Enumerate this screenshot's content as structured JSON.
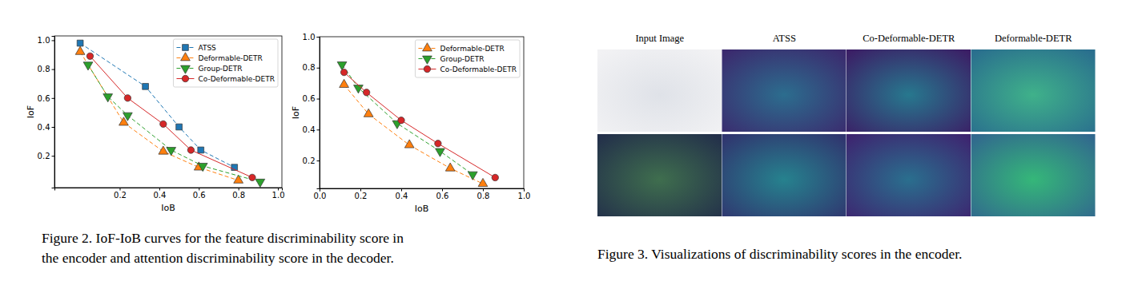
{
  "chart_data": [
    {
      "type": "line",
      "xlabel": "IoB",
      "ylabel": "IoF",
      "xlim": [
        -0.13,
        1.02
      ],
      "ylim": [
        -0.02,
        1.03
      ],
      "xticks": [
        0.2,
        0.4,
        0.6,
        0.8,
        {
          "value": 1.0,
          "label": "1.0"
        }
      ],
      "yticks": [
        0.2,
        0.4,
        0.6,
        0.8,
        {
          "value": 1.0,
          "label": "1.0"
        }
      ],
      "legend": "upper right",
      "series": [
        {
          "name": "ATSS",
          "color": "#1f77b4",
          "marker": "square",
          "line_style": "dashed",
          "x": [
            0.0,
            0.33,
            0.5,
            0.61,
            0.78
          ],
          "values": [
            0.98,
            0.68,
            0.4,
            0.24,
            0.12
          ]
        },
        {
          "name": "Deformable-DETR",
          "color": "#ff7f0e",
          "marker": "triangle-up",
          "line_style": "dashed",
          "x": [
            0.0,
            0.22,
            0.42,
            0.6,
            0.8
          ],
          "values": [
            0.92,
            0.43,
            0.23,
            0.12,
            0.03
          ]
        },
        {
          "name": "Group-DETR",
          "color": "#2ca02c",
          "marker": "triangle-down",
          "line_style": "dashed",
          "x": [
            0.04,
            0.14,
            0.24,
            0.46,
            0.62,
            0.91
          ],
          "values": [
            0.83,
            0.61,
            0.48,
            0.24,
            0.13,
            0.02
          ]
        },
        {
          "name": "Co-Deformable-DETR",
          "color": "#d62728",
          "marker": "circle",
          "line_style": "solid",
          "x": [
            0.05,
            0.24,
            0.42,
            0.56,
            0.87
          ],
          "values": [
            0.89,
            0.6,
            0.42,
            0.24,
            0.05
          ]
        }
      ]
    },
    {
      "type": "line",
      "xlabel": "IoB",
      "ylabel": "IoF",
      "xlim": [
        0.0,
        1.0
      ],
      "ylim": [
        0.02,
        1.0
      ],
      "xticks": [
        {
          "value": 0.0,
          "label": "0.0"
        },
        0.2,
        0.4,
        0.6,
        0.8,
        {
          "value": 1.0,
          "label": "1.0"
        }
      ],
      "yticks": [
        0.2,
        0.4,
        0.6,
        0.8,
        {
          "value": 1.0,
          "label": "1.0"
        }
      ],
      "legend": "upper right",
      "series": [
        {
          "name": "Deformable-DETR",
          "color": "#ff7f0e",
          "marker": "triangle-up",
          "line_style": "dashed",
          "x": [
            0.12,
            0.24,
            0.44,
            0.64,
            0.8
          ],
          "values": [
            0.69,
            0.5,
            0.3,
            0.15,
            0.05
          ]
        },
        {
          "name": "Group-DETR",
          "color": "#2ca02c",
          "marker": "triangle-down",
          "line_style": "dashed",
          "x": [
            0.11,
            0.19,
            0.38,
            0.59,
            0.75
          ],
          "values": [
            0.82,
            0.67,
            0.44,
            0.26,
            0.11
          ]
        },
        {
          "name": "Co-Deformable-DETR",
          "color": "#d62728",
          "marker": "circle",
          "line_style": "solid",
          "x": [
            0.12,
            0.23,
            0.4,
            0.58,
            0.86
          ],
          "values": [
            0.77,
            0.64,
            0.46,
            0.31,
            0.09
          ]
        }
      ]
    }
  ],
  "figure_2": {
    "caption": [
      "Figure 2. IoF-IoB curves for the feature discriminability score in",
      "the encoder and attention discriminability score in the decoder."
    ]
  },
  "figure_3": {
    "column_titles": [
      "Input Image",
      "ATSS",
      "Co-Deformable-DETR",
      "Deformable-DETR"
    ],
    "caption": "Figure 3. Visualizations of discriminability scores in the encoder."
  }
}
